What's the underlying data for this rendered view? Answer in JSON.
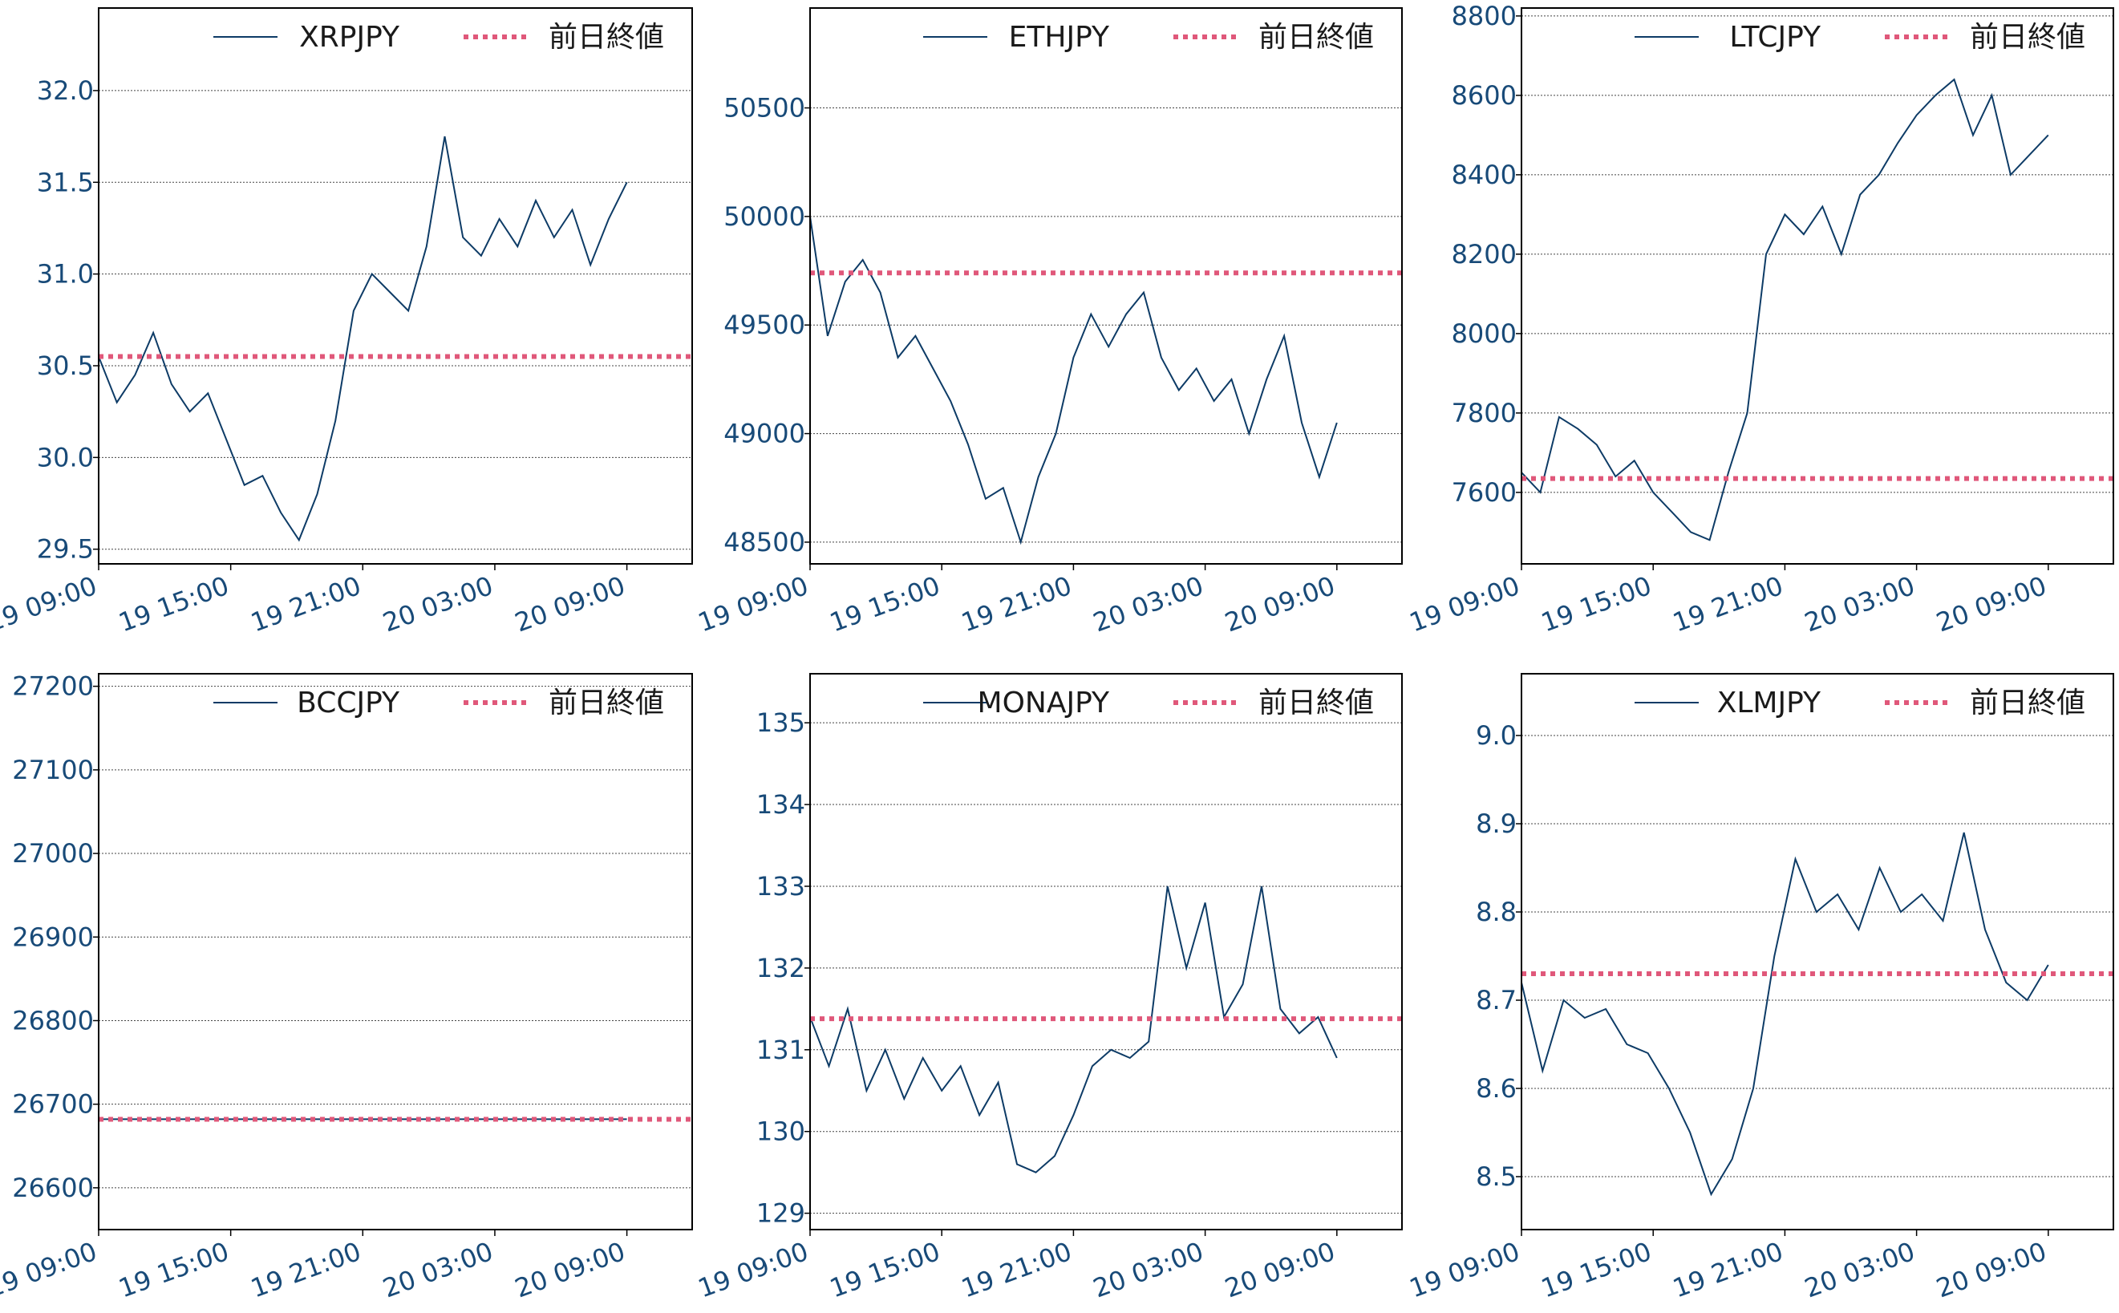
{
  "colors": {
    "series": "#0d3b66",
    "reference": "#e0587a",
    "text": "#184a78",
    "grid": "#444444"
  },
  "x_tick_labels": [
    "19 09:00",
    "19 15:00",
    "19 21:00",
    "20 03:00",
    "20 09:00"
  ],
  "reference_label": "前日終値",
  "chart_data": [
    {
      "type": "line",
      "series": [
        {
          "name": "XRPJPY",
          "values": [
            30.55,
            30.3,
            30.45,
            30.68,
            30.4,
            30.25,
            30.35,
            30.1,
            29.85,
            29.9,
            29.7,
            29.55,
            29.8,
            30.2,
            30.8,
            31.0,
            30.9,
            30.8,
            31.15,
            31.75,
            31.2,
            31.1,
            31.3,
            31.15,
            31.4,
            31.2,
            31.35,
            31.05,
            31.3,
            31.5
          ]
        },
        {
          "name": "前日終値",
          "values": [
            30.55,
            30.55
          ]
        }
      ],
      "ylim": [
        29.42,
        32.45
      ],
      "yticks": [
        "29.5",
        "30.0",
        "30.5",
        "31.0",
        "31.5",
        "32.0"
      ],
      "legend": "top-right"
    },
    {
      "type": "line",
      "series": [
        {
          "name": "ETHJPY",
          "values": [
            50000,
            49450,
            49700,
            49800,
            49650,
            49350,
            49450,
            49300,
            49150,
            48950,
            48700,
            48750,
            48500,
            48800,
            49000,
            49350,
            49550,
            49400,
            49550,
            49650,
            49350,
            49200,
            49300,
            49150,
            49250,
            49000,
            49250,
            49450,
            49050,
            48800,
            49050
          ]
        },
        {
          "name": "前日終値",
          "values": [
            49740,
            49740
          ]
        }
      ],
      "ylim": [
        48400,
        50960
      ],
      "yticks": [
        "48500",
        "49000",
        "49500",
        "50000",
        "50500"
      ],
      "legend": "top-right"
    },
    {
      "type": "line",
      "series": [
        {
          "name": "LTCJPY",
          "values": [
            7650,
            7600,
            7790,
            7760,
            7720,
            7640,
            7680,
            7600,
            7550,
            7500,
            7480,
            7650,
            7800,
            8200,
            8300,
            8250,
            8320,
            8200,
            8350,
            8400,
            8480,
            8550,
            8600,
            8640,
            8500,
            8600,
            8400,
            8450,
            8500
          ]
        },
        {
          "name": "前日終値",
          "values": [
            7635,
            7635
          ]
        }
      ],
      "ylim": [
        7420,
        8820
      ],
      "yticks": [
        "7600",
        "7800",
        "8000",
        "8200",
        "8400",
        "8600",
        "8800"
      ],
      "legend": "top-right"
    },
    {
      "type": "line",
      "series": [
        {
          "name": "BCCJPY",
          "values": [
            26682,
            26682
          ]
        },
        {
          "name": "前日終値",
          "values": [
            26682,
            26682
          ]
        }
      ],
      "ylim": [
        26550,
        27215
      ],
      "yticks": [
        "26600",
        "26700",
        "26800",
        "26900",
        "27000",
        "27100",
        "27200"
      ],
      "legend": "top-right"
    },
    {
      "type": "line",
      "series": [
        {
          "name": "MONAJPY",
          "values": [
            131.4,
            130.8,
            131.5,
            130.5,
            131.0,
            130.4,
            130.9,
            130.5,
            130.8,
            130.2,
            130.6,
            129.6,
            129.5,
            129.7,
            130.2,
            130.8,
            131.0,
            130.9,
            131.1,
            133.0,
            132.0,
            132.8,
            131.4,
            131.8,
            133.0,
            131.5,
            131.2,
            131.4,
            130.9
          ]
        },
        {
          "name": "前日終値",
          "values": [
            131.38,
            131.38
          ]
        }
      ],
      "ylim": [
        128.8,
        135.6
      ],
      "yticks": [
        "129",
        "130",
        "131",
        "132",
        "133",
        "134",
        "135"
      ],
      "legend": "top-right"
    },
    {
      "type": "line",
      "series": [
        {
          "name": "XLMJPY",
          "values": [
            8.72,
            8.62,
            8.7,
            8.68,
            8.69,
            8.65,
            8.64,
            8.6,
            8.55,
            8.48,
            8.52,
            8.6,
            8.75,
            8.86,
            8.8,
            8.82,
            8.78,
            8.85,
            8.8,
            8.82,
            8.79,
            8.89,
            8.78,
            8.72,
            8.7,
            8.74
          ]
        },
        {
          "name": "前日終値",
          "values": [
            8.73,
            8.73
          ]
        }
      ],
      "ylim": [
        8.44,
        9.07
      ],
      "yticks": [
        "8.5",
        "8.6",
        "8.7",
        "8.8",
        "8.9",
        "9.0"
      ],
      "legend": "top-right"
    }
  ]
}
